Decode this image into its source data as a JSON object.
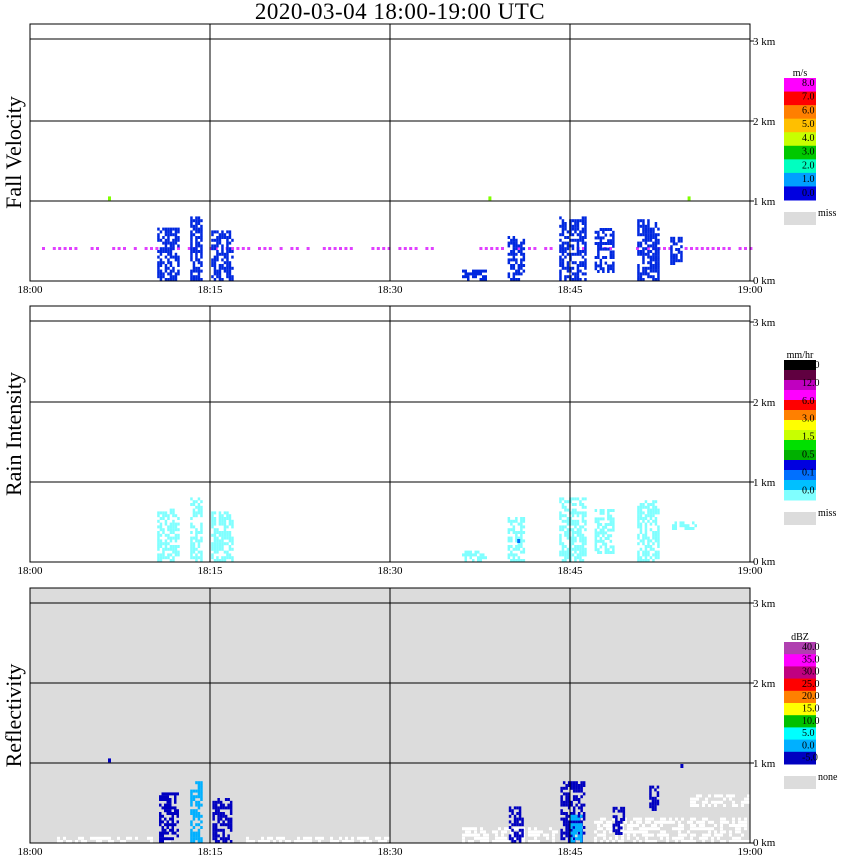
{
  "title": "2020-03-04   18:00-19:00 UTC",
  "colors": {
    "missing": "#dcdcdc"
  },
  "chart_data": {
    "type": "heatmap",
    "x_ticks": [
      "18:00",
      "18:15",
      "18:30",
      "18:45",
      "19:00"
    ],
    "y_ticks": [
      "0 km",
      "1 km",
      "2 km",
      "3 km"
    ],
    "ylim_km": [
      0,
      3.2
    ],
    "panels": [
      {
        "ylabel": "Fall Velocity",
        "unit": "m/s",
        "colorbar_labels": [
          "8.0",
          "7.0",
          "6.0",
          "5.0",
          "4.0",
          "3.0",
          "2.0",
          "1.0",
          "0.0"
        ],
        "colorbar_colors": [
          "#ff00ff",
          "#ff0000",
          "#ff7f00",
          "#ffbf00",
          "#c8ff00",
          "#00c800",
          "#00ffc0",
          "#00a0ff",
          "#0000e0"
        ],
        "missing_label": "miss",
        "background": "#ffffff",
        "cells": [
          {
            "t": 11.5,
            "h0": 0.0,
            "h1": 0.65,
            "dt": 1.8,
            "c": "#0028e0"
          },
          {
            "t": 13.8,
            "h0": 0.0,
            "h1": 0.8,
            "dt": 0.9,
            "c": "#0028e0"
          },
          {
            "t": 16.0,
            "h0": 0.0,
            "h1": 0.6,
            "dt": 1.8,
            "c": "#0028e0"
          },
          {
            "t": 40.5,
            "h0": 0.0,
            "h1": 0.55,
            "dt": 1.4,
            "c": "#0028e0"
          },
          {
            "t": 37.0,
            "h0": 0.0,
            "h1": 0.12,
            "dt": 2.0,
            "c": "#0028e0"
          },
          {
            "t": 45.2,
            "h0": 0.0,
            "h1": 0.8,
            "dt": 2.2,
            "c": "#0028e0"
          },
          {
            "t": 47.8,
            "h0": 0.1,
            "h1": 0.65,
            "dt": 1.5,
            "c": "#0028e0"
          },
          {
            "t": 51.5,
            "h0": 0.0,
            "h1": 0.75,
            "dt": 1.8,
            "c": "#0028e0"
          },
          {
            "t": 53.8,
            "h0": 0.2,
            "h1": 0.55,
            "dt": 0.9,
            "c": "#0028e0"
          }
        ],
        "points": [
          {
            "t": 6.5,
            "h": 1.02,
            "c": "#80ff00"
          },
          {
            "t": 38.2,
            "h": 1.02,
            "c": "#80ff00"
          },
          {
            "t": 54.8,
            "h": 1.02,
            "c": "#80ff00"
          }
        ],
        "band": {
          "h": 0.4,
          "c": "#e040ff"
        }
      },
      {
        "ylabel": "Rain Intensity",
        "unit": "mm/hr",
        "colorbar_labels": [
          "48.0",
          "12.0",
          "6.0",
          "3.0",
          "1.5",
          "0.5",
          "0.1",
          "0.0"
        ],
        "colorbar_colors": [
          "#000000",
          "#600040",
          "#c000c0",
          "#ff00ff",
          "#ff0000",
          "#ff8000",
          "#ffff00",
          "#c8ff00",
          "#00e000",
          "#00b000",
          "#0000e0",
          "#0070ff",
          "#00c0ff",
          "#80ffff"
        ],
        "missing_label": "miss",
        "background": "#ffffff",
        "cells": [
          {
            "t": 11.5,
            "h0": 0.0,
            "h1": 0.65,
            "dt": 1.8,
            "c": "#80ffff"
          },
          {
            "t": 13.8,
            "h0": 0.0,
            "h1": 0.8,
            "dt": 0.9,
            "c": "#80ffff"
          },
          {
            "t": 16.0,
            "h0": 0.0,
            "h1": 0.6,
            "dt": 1.8,
            "c": "#80ffff"
          },
          {
            "t": 40.5,
            "h0": 0.0,
            "h1": 0.55,
            "dt": 1.4,
            "c": "#80ffff"
          },
          {
            "t": 37.0,
            "h0": 0.0,
            "h1": 0.12,
            "dt": 2.0,
            "c": "#80ffff"
          },
          {
            "t": 45.2,
            "h0": 0.0,
            "h1": 0.8,
            "dt": 2.2,
            "c": "#80ffff"
          },
          {
            "t": 47.8,
            "h0": 0.1,
            "h1": 0.65,
            "dt": 1.5,
            "c": "#80ffff"
          },
          {
            "t": 51.5,
            "h0": 0.0,
            "h1": 0.75,
            "dt": 1.8,
            "c": "#80ffff"
          },
          {
            "t": 54.5,
            "h0": 0.4,
            "h1": 0.5,
            "dt": 2.0,
            "c": "#80ffff"
          }
        ],
        "points": [
          {
            "t": 40.6,
            "h": 0.25,
            "c": "#0070ff"
          }
        ]
      },
      {
        "ylabel": "Reflectivity",
        "unit": "dBZ",
        "colorbar_labels": [
          "40.0",
          "35.0",
          "30.0",
          "25.0",
          "20.0",
          "15.0",
          "10.0",
          "5.0",
          "0.0",
          "-5.0"
        ],
        "colorbar_colors": [
          "#b040b0",
          "#ff00ff",
          "#c00080",
          "#ff0000",
          "#ff8000",
          "#ffff00",
          "#00c000",
          "#00ffff",
          "#00b0ff",
          "#0000c0"
        ],
        "missing_label": "none",
        "background": "#dcdcdc",
        "cells": [
          {
            "t": 11.5,
            "h0": 0.0,
            "h1": 0.6,
            "dt": 1.5,
            "c": "#0000c0"
          },
          {
            "t": 13.8,
            "h0": 0.0,
            "h1": 0.75,
            "dt": 0.9,
            "c": "#00b0ff"
          },
          {
            "t": 16.0,
            "h0": 0.0,
            "h1": 0.55,
            "dt": 1.6,
            "c": "#0000c0"
          },
          {
            "t": 40.5,
            "h0": 0.0,
            "h1": 0.45,
            "dt": 1.2,
            "c": "#0000c0"
          },
          {
            "t": 45.2,
            "h0": 0.0,
            "h1": 0.75,
            "dt": 2.0,
            "c": "#0000c0"
          },
          {
            "t": 45.5,
            "h0": 0.0,
            "h1": 0.35,
            "dt": 1.0,
            "c": "#00b0ff"
          },
          {
            "t": 49.0,
            "h0": 0.1,
            "h1": 0.45,
            "dt": 0.9,
            "c": "#0000c0"
          },
          {
            "t": 52.0,
            "h0": 0.4,
            "h1": 0.7,
            "dt": 0.8,
            "c": "#0000c0"
          }
        ],
        "points": [
          {
            "t": 6.5,
            "h": 1.02,
            "c": "#0000c0"
          },
          {
            "t": 54.2,
            "h": 0.95,
            "c": "#0000c0"
          }
        ],
        "white_gaps": [
          {
            "t0": 2,
            "t1": 12,
            "h0": 0.0,
            "h1": 0.06
          },
          {
            "t0": 18,
            "t1": 30,
            "h0": 0.0,
            "h1": 0.05
          },
          {
            "t0": 36,
            "t1": 44,
            "h0": 0.0,
            "h1": 0.18
          },
          {
            "t0": 47,
            "t1": 60,
            "h0": 0.0,
            "h1": 0.3
          },
          {
            "t0": 55,
            "t1": 60,
            "h0": 0.45,
            "h1": 0.6
          }
        ]
      }
    ]
  }
}
